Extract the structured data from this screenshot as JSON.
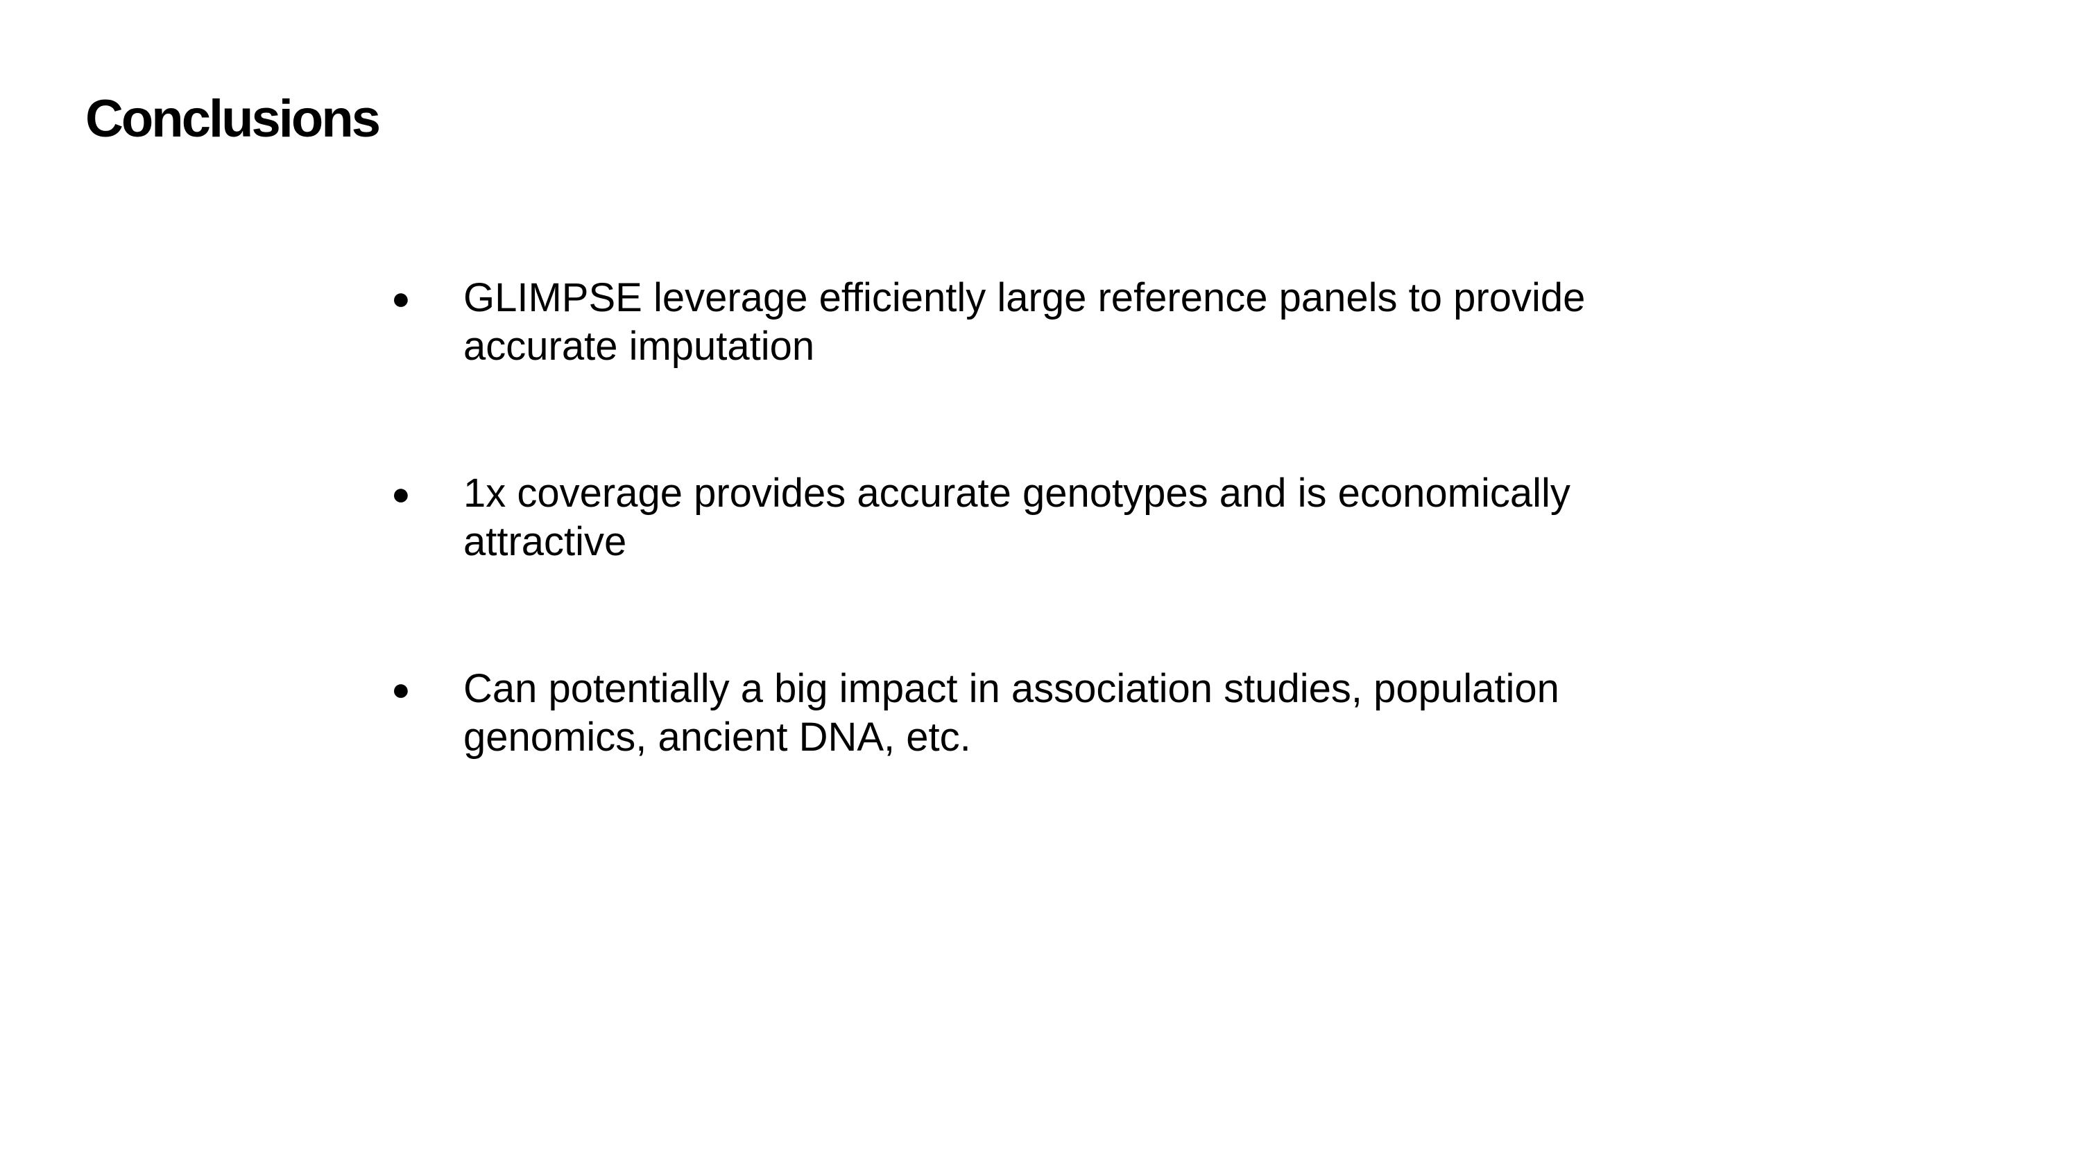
{
  "slide": {
    "title": "Conclusions",
    "bullet_symbol": "●",
    "bullets": [
      {
        "line1": "GLIMPSE leverage efficiently large reference panels to provide",
        "line2": "accurate imputation"
      },
      {
        "line1": "1x coverage provides accurate genotypes and is economically",
        "line2": "attractive"
      },
      {
        "line1": "Can potentially a big impact in association studies, population",
        "line2": "genomics, ancient DNA, etc."
      }
    ]
  }
}
